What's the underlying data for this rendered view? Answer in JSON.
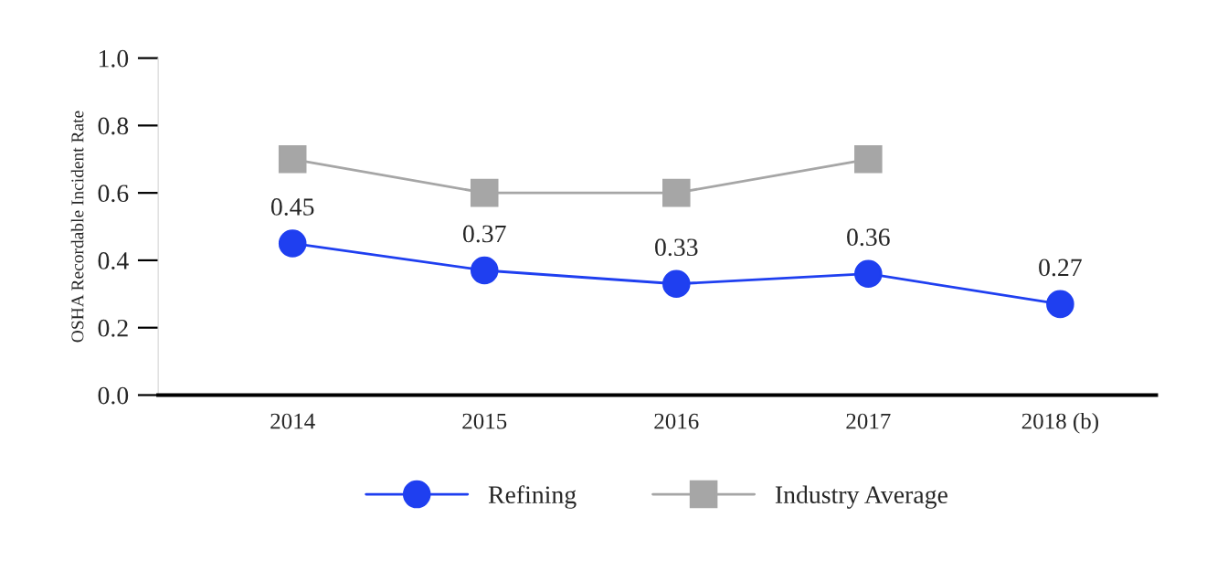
{
  "chart_data": {
    "type": "line",
    "ylabel": "OSHA Recordable Incident Rate",
    "categories": [
      "2014",
      "2015",
      "2016",
      "2017",
      "2018 (b)"
    ],
    "series": [
      {
        "name": "Refining",
        "color": "#1f3ff0",
        "marker": "circle",
        "values": [
          0.45,
          0.37,
          0.33,
          0.36,
          0.27
        ],
        "value_labels": [
          "0.45",
          "0.37",
          "0.33",
          "0.36",
          "0.27"
        ]
      },
      {
        "name": "Industry Average",
        "color": "#a6a6a6",
        "marker": "square",
        "values": [
          0.7,
          0.6,
          0.6,
          0.7,
          null
        ]
      }
    ],
    "ylim": [
      0,
      1.0
    ],
    "yticks": [
      {
        "value": 0,
        "label": "0.0"
      },
      {
        "value": 0.2,
        "label": "0.2"
      },
      {
        "value": 0.4,
        "label": "0.4"
      },
      {
        "value": 0.6,
        "label": "0.6"
      },
      {
        "value": 0.8,
        "label": "0.8"
      },
      {
        "value": 1.0,
        "label": "1.0"
      }
    ],
    "grid": false,
    "legend": "bottom"
  }
}
